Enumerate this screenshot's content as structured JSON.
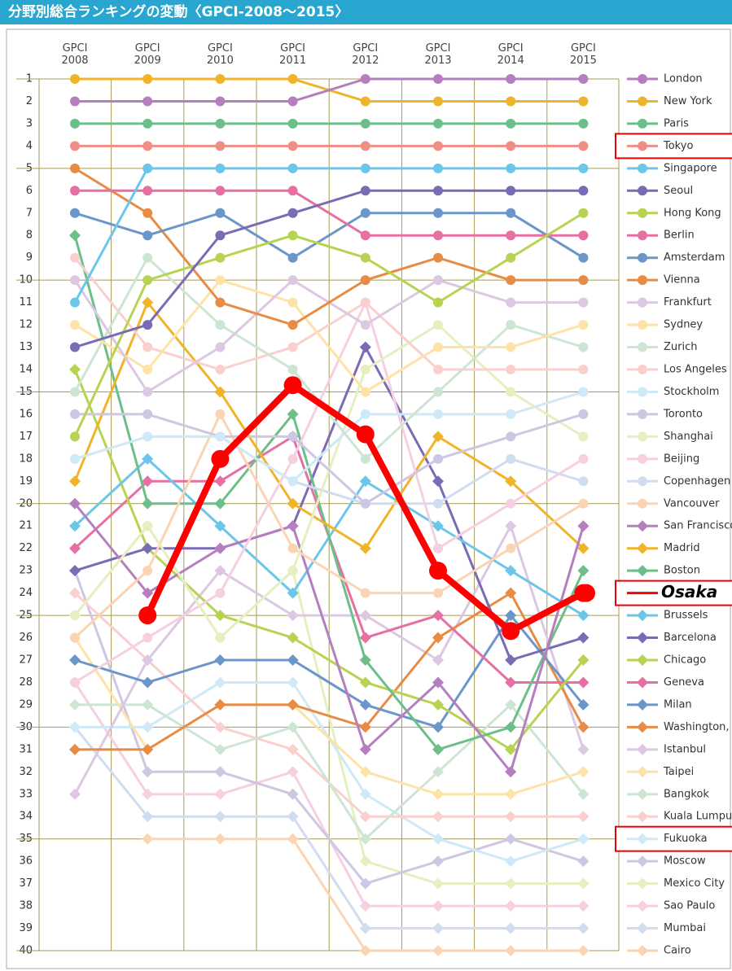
{
  "chart_data": {
    "type": "bump",
    "title": "分野別総合ランキングの変動〈GPCI-2008～2015〉",
    "categories": [
      "GPCI 2008",
      "GPCI 2009",
      "GPCI 2010",
      "GPCI 2011",
      "GPCI 2012",
      "GPCI 2013",
      "GPCI 2014",
      "GPCI 2015"
    ],
    "ylim": [
      1,
      40
    ],
    "invert_y": true,
    "yticks": [
      1,
      2,
      3,
      4,
      5,
      6,
      7,
      8,
      9,
      10,
      11,
      12,
      13,
      14,
      15,
      16,
      17,
      18,
      19,
      20,
      21,
      22,
      23,
      24,
      25,
      26,
      27,
      28,
      29,
      30,
      31,
      32,
      33,
      34,
      35,
      36,
      37,
      38,
      39,
      40
    ],
    "grid": true,
    "series": [
      {
        "name": "London",
        "color": "#b57fbf",
        "marker": "circle",
        "values": [
          2,
          2,
          2,
          2,
          1,
          1,
          1,
          1
        ]
      },
      {
        "name": "New York",
        "color": "#f0b429",
        "marker": "circle",
        "values": [
          1,
          1,
          1,
          1,
          2,
          2,
          2,
          2
        ]
      },
      {
        "name": "Paris",
        "color": "#6dbf8a",
        "marker": "circle",
        "values": [
          3,
          3,
          3,
          3,
          3,
          3,
          3,
          3
        ]
      },
      {
        "name": "Tokyo",
        "color": "#ee8e85",
        "marker": "circle",
        "highlight": true,
        "values": [
          4,
          4,
          4,
          4,
          4,
          4,
          4,
          4
        ]
      },
      {
        "name": "Singapore",
        "color": "#6cc6ea",
        "marker": "circle",
        "values": [
          11,
          5,
          5,
          5,
          5,
          5,
          5,
          5
        ]
      },
      {
        "name": "Seoul",
        "color": "#7b6bb5",
        "marker": "circle",
        "values": [
          13,
          12,
          8,
          7,
          6,
          6,
          6,
          6
        ]
      },
      {
        "name": "Hong Kong",
        "color": "#b7d351",
        "marker": "circle",
        "values": [
          17,
          10,
          9,
          8,
          9,
          11,
          9,
          7
        ]
      },
      {
        "name": "Berlin",
        "color": "#e66fa3",
        "marker": "circle",
        "values": [
          6,
          6,
          6,
          6,
          8,
          8,
          8,
          8
        ]
      },
      {
        "name": "Amsterdam",
        "color": "#6b96c9",
        "marker": "circle",
        "values": [
          7,
          8,
          7,
          9,
          7,
          7,
          7,
          9
        ]
      },
      {
        "name": "Vienna",
        "color": "#e88c45",
        "marker": "circle",
        "values": [
          5,
          7,
          11,
          12,
          10,
          9,
          10,
          10
        ]
      },
      {
        "name": "Frankfurt",
        "color": "#dcc8e2",
        "marker": "circle",
        "values": [
          10,
          15,
          13,
          10,
          12,
          10,
          11,
          11
        ]
      },
      {
        "name": "Sydney",
        "color": "#fde3a7",
        "marker": "circle",
        "values": [
          12,
          14,
          10,
          11,
          15,
          13,
          13,
          12
        ]
      },
      {
        "name": "Zurich",
        "color": "#cde5d3",
        "marker": "circle",
        "values": [
          15,
          9,
          12,
          14,
          18,
          15,
          12,
          13
        ]
      },
      {
        "name": "Los Angeles",
        "color": "#fad0cf",
        "marker": "circle",
        "values": [
          9,
          13,
          14,
          13,
          11,
          14,
          14,
          14
        ]
      },
      {
        "name": "Stockholm",
        "color": "#cfe9f7",
        "marker": "circle",
        "values": [
          18,
          17,
          17,
          19,
          16,
          16,
          16,
          15
        ]
      },
      {
        "name": "Toronto",
        "color": "#cdc7e3",
        "marker": "circle",
        "values": [
          16,
          16,
          17,
          17,
          20,
          18,
          17,
          16
        ]
      },
      {
        "name": "Shanghai",
        "color": "#e6efc0",
        "marker": "circle",
        "values": [
          25,
          21,
          26,
          23,
          14,
          12,
          15,
          17
        ]
      },
      {
        "name": "Beijing",
        "color": "#f6cfe0",
        "marker": "circle",
        "values": [
          28,
          26,
          24,
          18,
          11,
          22,
          20,
          18
        ]
      },
      {
        "name": "Copenhagen",
        "color": "#d0dcef",
        "marker": "circle",
        "values": [
          18,
          17,
          17,
          19,
          20,
          20,
          18,
          19
        ]
      },
      {
        "name": "Vancouver",
        "color": "#fbd5b3",
        "marker": "circle",
        "values": [
          26,
          23,
          16,
          22,
          24,
          24,
          22,
          20
        ]
      },
      {
        "name": "San Francisco",
        "color": "#b57fbf",
        "marker": "diamond",
        "values": [
          20,
          24,
          22,
          21,
          31,
          28,
          32,
          21
        ]
      },
      {
        "name": "Madrid",
        "color": "#f0b429",
        "marker": "diamond",
        "values": [
          19,
          11,
          15,
          20,
          22,
          17,
          19,
          22
        ]
      },
      {
        "name": "Boston",
        "color": "#6dbf8a",
        "marker": "diamond",
        "values": [
          8,
          20,
          20,
          16,
          27,
          31,
          30,
          23
        ]
      },
      {
        "name": "Osaka",
        "color": "#ff0000",
        "marker": "circle",
        "highlight": true,
        "emphasis": true,
        "values": [
          null,
          25,
          18,
          14.7,
          16.9,
          23,
          25.7,
          24
        ]
      },
      {
        "name": "Brussels",
        "color": "#6cc6ea",
        "marker": "diamond",
        "values": [
          21,
          18,
          21,
          24,
          19,
          21,
          23,
          25
        ]
      },
      {
        "name": "Barcelona",
        "color": "#7b6bb5",
        "marker": "diamond",
        "values": [
          23,
          22,
          22,
          21,
          13,
          19,
          27,
          26
        ]
      },
      {
        "name": "Chicago",
        "color": "#b7d351",
        "marker": "diamond",
        "values": [
          14,
          22,
          25,
          26,
          28,
          29,
          31,
          27
        ]
      },
      {
        "name": "Geneva",
        "color": "#e66fa3",
        "marker": "diamond",
        "values": [
          22,
          19,
          19,
          17,
          26,
          25,
          28,
          28
        ]
      },
      {
        "name": "Milan",
        "color": "#6b96c9",
        "marker": "diamond",
        "values": [
          27,
          28,
          27,
          27,
          29,
          30,
          25,
          29
        ]
      },
      {
        "name": "Washington, D.C.",
        "color": "#e88c45",
        "marker": "diamond",
        "values": [
          31,
          31,
          29,
          29,
          30,
          26,
          24,
          30
        ]
      },
      {
        "name": "Istanbul",
        "color": "#dcc8e2",
        "marker": "diamond",
        "values": [
          33,
          27,
          23,
          25,
          25,
          27,
          21,
          31
        ]
      },
      {
        "name": "Taipei",
        "color": "#fde3a7",
        "marker": "diamond",
        "values": [
          26,
          31,
          29,
          29,
          32,
          33,
          33,
          32
        ]
      },
      {
        "name": "Bangkok",
        "color": "#cde5d3",
        "marker": "diamond",
        "values": [
          29,
          29,
          31,
          30,
          35,
          32,
          29,
          33
        ]
      },
      {
        "name": "Kuala Lumpur",
        "color": "#fad0cf",
        "marker": "diamond",
        "values": [
          24,
          27,
          30,
          31,
          34,
          34,
          34,
          34
        ]
      },
      {
        "name": "Fukuoka",
        "color": "#cfe9f7",
        "marker": "diamond",
        "highlight": true,
        "values": [
          30,
          30,
          28,
          28,
          33,
          35,
          36,
          35
        ]
      },
      {
        "name": "Moscow",
        "color": "#cdc7e3",
        "marker": "diamond",
        "values": [
          23,
          32,
          32,
          33,
          37,
          36,
          35,
          36
        ]
      },
      {
        "name": "Mexico City",
        "color": "#e6efc0",
        "marker": "diamond",
        "values": [
          25,
          21,
          26,
          23,
          36,
          37,
          37,
          37
        ]
      },
      {
        "name": "Sao Paulo",
        "color": "#f6cfe0",
        "marker": "diamond",
        "values": [
          28,
          33,
          33,
          32,
          38,
          38,
          38,
          38
        ]
      },
      {
        "name": "Mumbai",
        "color": "#d0dcef",
        "marker": "diamond",
        "values": [
          30,
          34,
          34,
          34,
          39,
          39,
          39,
          39
        ]
      },
      {
        "name": "Cairo",
        "color": "#fbd5b3",
        "marker": "diamond",
        "values": [
          null,
          35,
          35,
          35,
          40,
          40,
          40,
          40
        ]
      }
    ]
  }
}
